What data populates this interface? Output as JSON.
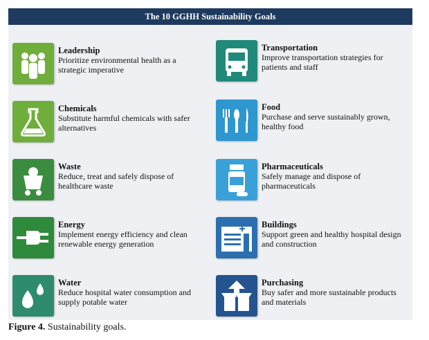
{
  "header": {
    "title": "The 10 GGHH Sustainability Goals"
  },
  "goals": [
    {
      "title": "Leadership",
      "desc": "Prioritize environmental health as a strategic imperative",
      "icon": "leadership-icon",
      "color": "#6fae3a"
    },
    {
      "title": "Chemicals",
      "desc": "Substitute harmful chemicals with safer alternatives",
      "icon": "flask-icon",
      "color": "#6fae3a"
    },
    {
      "title": "Waste",
      "desc": "Reduce, treat and safely dispose of healthcare waste",
      "icon": "waste-cart-icon",
      "color": "#3b8c3f"
    },
    {
      "title": "Energy",
      "desc": "Implement energy efficiency and clean renewable energy generation",
      "icon": "plug-icon",
      "color": "#2f8a3b"
    },
    {
      "title": "Water",
      "desc": "Reduce hospital water consumption and supply potable water",
      "icon": "water-drops-icon",
      "color": "#2e8b6e"
    },
    {
      "title": "Transportation",
      "desc": "Improve transportation strategies for patients and staff",
      "icon": "bus-icon",
      "color": "#21897a"
    },
    {
      "title": "Food",
      "desc": "Purchase and serve sustainably grown, healthy food",
      "icon": "cutlery-icon",
      "color": "#2e97cf"
    },
    {
      "title": "Pharmaceuticals",
      "desc": "Safely manage and dispose of pharmaceuticals",
      "icon": "pill-bottle-icon",
      "color": "#3aa0d8"
    },
    {
      "title": "Buildings",
      "desc": "Support green and healthy hospital design and construction",
      "icon": "hospital-building-icon",
      "color": "#2c6fb0"
    },
    {
      "title": "Purchasing",
      "desc": "Buy safer and more sustainable products and materials",
      "icon": "box-icon",
      "color": "#24548f"
    }
  ],
  "caption": {
    "label": "Figure 4.",
    "text": "Sustainability goals."
  }
}
